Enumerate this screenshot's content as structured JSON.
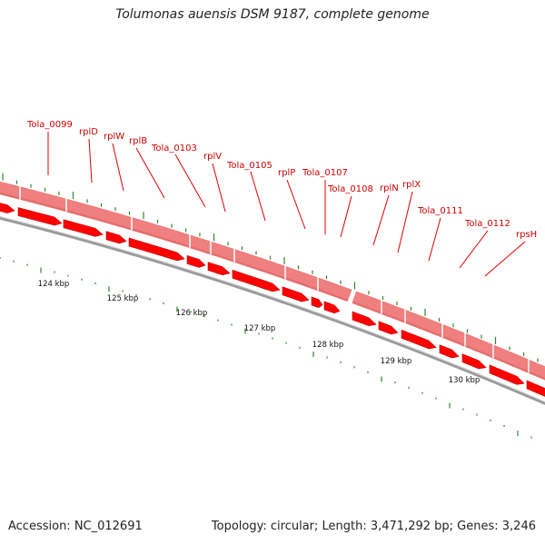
{
  "title": "Tolumonas auensis DSM 9187, complete genome",
  "footer": {
    "accession_label": "Accession: NC_012691",
    "summary": "Topology: circular; Length: 3,471,292 bp; Genes: 3,246"
  },
  "colors": {
    "gene_arrow": "#ff0000",
    "gene_band": "#f08080",
    "label": "#cc0000",
    "backbone": "#808080",
    "tick": "#2a8a2a"
  },
  "genes": [
    {
      "label": "Tola_0099"
    },
    {
      "label": "rplD"
    },
    {
      "label": "rplW"
    },
    {
      "label": "rplB"
    },
    {
      "label": "Tola_0103"
    },
    {
      "label": "rplV"
    },
    {
      "label": "Tola_0105"
    },
    {
      "label": "rplP"
    },
    {
      "label": "Tola_0107"
    },
    {
      "label": "Tola_0108"
    },
    {
      "label": "rplN"
    },
    {
      "label": "rplX"
    },
    {
      "label": "Tola_0111"
    },
    {
      "label": "Tola_0112"
    },
    {
      "label": "rpsH"
    }
  ],
  "scale_labels": [
    "124 kbp",
    "125 kbp",
    "126 kbp",
    "127 kbp",
    "128 kbp",
    "129 kbp",
    "130 kbp"
  ]
}
